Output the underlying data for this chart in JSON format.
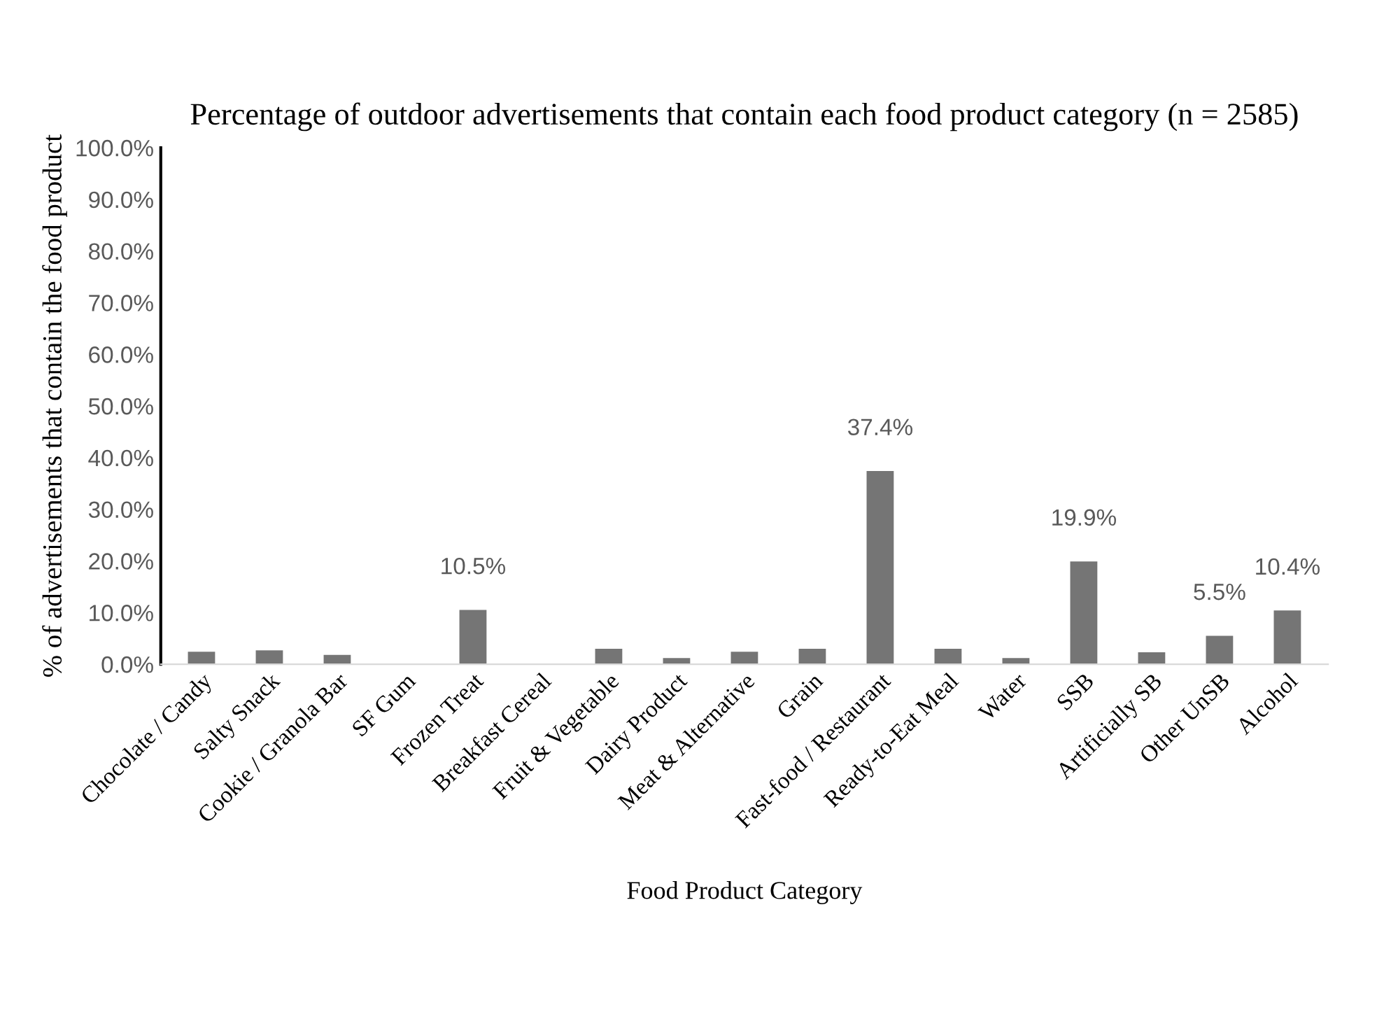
{
  "chart_data": {
    "type": "bar",
    "title": "Percentage of outdoor advertisements that contain each food product category (n = 2585)",
    "xlabel": "Food Product Category",
    "ylabel": "% of advertisements that contain the food product",
    "categories": [
      "Chocolate / Candy",
      "Salty Snack",
      "Cookie / Granola Bar",
      "SF Gum",
      "Frozen Treat",
      "Breakfast Cereal",
      "Fruit & Vegetable",
      "Dairy Product",
      "Meat & Alternative",
      "Grain",
      "Fast-food / Restaurant",
      "Ready-to-Eat Meal",
      "Water",
      "SSB",
      "Artificially SB",
      "Other UnSB",
      "Alcohol"
    ],
    "values": [
      2.4,
      2.7,
      1.8,
      0,
      10.5,
      0,
      3.0,
      1.2,
      2.4,
      3.0,
      37.4,
      3.0,
      1.2,
      19.9,
      2.3,
      5.5,
      10.4
    ],
    "value_labels": [
      null,
      null,
      null,
      null,
      "10.5%",
      null,
      null,
      null,
      null,
      null,
      "37.4%",
      null,
      null,
      "19.9%",
      null,
      "5.5%",
      "10.4%"
    ],
    "color": "#757575",
    "ylim": [
      0,
      100
    ],
    "yticks": [
      {
        "value": 0,
        "label": "0.0%"
      },
      {
        "value": 10,
        "label": "10.0%"
      },
      {
        "value": 20,
        "label": "20.0%"
      },
      {
        "value": 30,
        "label": "30.0%"
      },
      {
        "value": 40,
        "label": "40.0%"
      },
      {
        "value": 50,
        "label": "50.0%"
      },
      {
        "value": 60,
        "label": "60.0%"
      },
      {
        "value": 70,
        "label": "70.0%"
      },
      {
        "value": 80,
        "label": "80.0%"
      },
      {
        "value": 90,
        "label": "90.0%"
      },
      {
        "value": 100,
        "label": "100.0%"
      }
    ],
    "grid": false,
    "legend": false
  }
}
